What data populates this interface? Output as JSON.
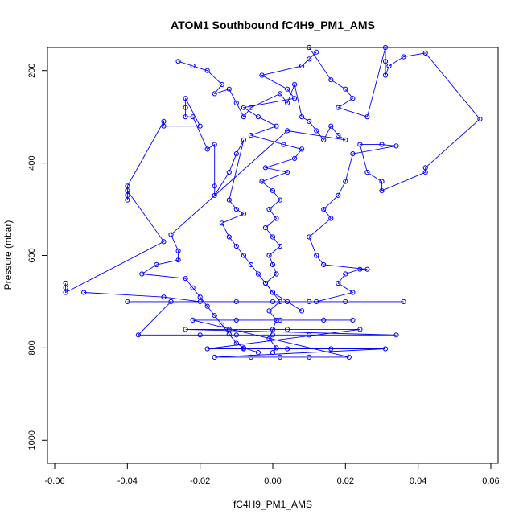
{
  "chart_data": {
    "type": "line",
    "title": "ATOM1 Southbound fC4H9_PM1_AMS",
    "xlabel": "fC4H9_PM1_AMS",
    "ylabel": "Pressure (mbar)",
    "xlim": [
      -0.062,
      0.062
    ],
    "ylim": [
      1050,
      150
    ],
    "y_reversed": true,
    "x_ticks": [
      {
        "value": -0.06,
        "label": "-0.06"
      },
      {
        "value": -0.04,
        "label": "-0.04"
      },
      {
        "value": -0.02,
        "label": "-0.02"
      },
      {
        "value": 0.0,
        "label": "0.00"
      },
      {
        "value": 0.02,
        "label": "0.02"
      },
      {
        "value": 0.04,
        "label": "0.04"
      },
      {
        "value": 0.06,
        "label": "0.06"
      }
    ],
    "y_ticks": [
      {
        "value": 200,
        "label": "200"
      },
      {
        "value": 400,
        "label": "400"
      },
      {
        "value": 600,
        "label": "600"
      },
      {
        "value": 800,
        "label": "800"
      },
      {
        "value": 1000,
        "label": "1000"
      }
    ],
    "grid": false,
    "series_color": "#0000ff",
    "marker": "open-circle",
    "series": [
      {
        "points": [
          [
            0.012,
            160
          ],
          [
            0.01,
            175
          ],
          [
            0.008,
            190
          ],
          [
            -0.003,
            210
          ],
          [
            0.004,
            240
          ],
          [
            0.006,
            260
          ],
          [
            -0.008,
            280
          ],
          [
            -0.004,
            300
          ],
          [
            0.001,
            320
          ],
          [
            -0.006,
            340
          ],
          [
            0.003,
            360
          ],
          [
            0.008,
            370
          ],
          [
            0.006,
            390
          ],
          [
            -0.002,
            410
          ],
          [
            0.004,
            420
          ],
          [
            -0.003,
            440
          ],
          [
            0.0,
            460
          ],
          [
            0.002,
            480
          ],
          [
            -0.001,
            500
          ],
          [
            0.001,
            520
          ],
          [
            -0.002,
            540
          ],
          [
            0.0,
            560
          ],
          [
            0.002,
            580
          ],
          [
            -0.001,
            600
          ],
          [
            0.0,
            620
          ],
          [
            0.001,
            640
          ],
          [
            -0.002,
            660
          ],
          [
            0.0,
            680
          ],
          [
            0.002,
            700
          ],
          [
            -0.001,
            720
          ],
          [
            0.001,
            740
          ],
          [
            0.0,
            760
          ],
          [
            -0.001,
            780
          ],
          [
            0.001,
            800
          ],
          [
            0.0,
            810
          ]
        ]
      },
      {
        "points": [
          [
            -0.057,
            660
          ],
          [
            -0.057,
            670
          ],
          [
            -0.057,
            680
          ],
          [
            -0.03,
            570
          ],
          [
            -0.04,
            460
          ],
          [
            -0.04,
            470
          ],
          [
            -0.04,
            480
          ],
          [
            -0.04,
            450
          ],
          [
            -0.03,
            310
          ],
          [
            -0.03,
            320
          ],
          [
            -0.02,
            320
          ],
          [
            -0.024,
            260
          ],
          [
            -0.024,
            280
          ],
          [
            -0.024,
            300
          ],
          [
            -0.022,
            300
          ],
          [
            -0.018,
            370
          ],
          [
            -0.016,
            360
          ],
          [
            -0.016,
            450
          ],
          [
            -0.016,
            470
          ],
          [
            -0.012,
            420
          ],
          [
            -0.01,
            380
          ],
          [
            -0.008,
            350
          ],
          [
            -0.012,
            480
          ],
          [
            -0.01,
            500
          ],
          [
            -0.008,
            510
          ],
          [
            -0.014,
            530
          ],
          [
            -0.012,
            560
          ],
          [
            -0.01,
            580
          ],
          [
            -0.008,
            600
          ],
          [
            -0.006,
            620
          ],
          [
            -0.004,
            640
          ],
          [
            -0.002,
            660
          ],
          [
            0.0,
            680
          ],
          [
            0.004,
            700
          ],
          [
            0.008,
            720
          ]
        ]
      },
      {
        "points": [
          [
            -0.052,
            680
          ],
          [
            -0.03,
            690
          ],
          [
            -0.02,
            700
          ],
          [
            -0.01,
            700
          ],
          [
            0.0,
            700
          ],
          [
            0.01,
            700
          ],
          [
            0.02,
            700
          ],
          [
            0.036,
            700
          ],
          [
            -0.04,
            700
          ],
          [
            -0.028,
            700
          ],
          [
            -0.037,
            772
          ],
          [
            -0.02,
            772
          ],
          [
            -0.01,
            772
          ],
          [
            0.0,
            772
          ],
          [
            0.01,
            772
          ],
          [
            0.034,
            772
          ],
          [
            -0.024,
            760
          ],
          [
            -0.012,
            760
          ],
          [
            0.004,
            760
          ],
          [
            0.024,
            760
          ],
          [
            -0.018,
            802
          ],
          [
            -0.008,
            802
          ],
          [
            0.004,
            802
          ],
          [
            0.016,
            802
          ],
          [
            0.031,
            802
          ],
          [
            -0.016,
            820
          ],
          [
            -0.006,
            820
          ],
          [
            0.002,
            820
          ],
          [
            0.01,
            820
          ],
          [
            0.021,
            820
          ],
          [
            -0.022,
            740
          ],
          [
            -0.01,
            740
          ],
          [
            0.002,
            740
          ],
          [
            0.014,
            740
          ],
          [
            0.022,
            740
          ]
        ]
      },
      {
        "points": [
          [
            0.01,
            150
          ],
          [
            0.016,
            220
          ],
          [
            0.02,
            240
          ],
          [
            0.022,
            260
          ],
          [
            0.018,
            280
          ],
          [
            0.026,
            300
          ],
          [
            0.031,
            150
          ],
          [
            0.031,
            180
          ],
          [
            0.031,
            210
          ],
          [
            0.032,
            190
          ],
          [
            0.036,
            170
          ],
          [
            0.042,
            162
          ],
          [
            0.057,
            305
          ],
          [
            0.042,
            410
          ],
          [
            0.042,
            420
          ],
          [
            0.03,
            460
          ],
          [
            0.03,
            440
          ],
          [
            0.026,
            420
          ],
          [
            0.024,
            360
          ],
          [
            0.03,
            360
          ],
          [
            0.034,
            363
          ],
          [
            0.022,
            380
          ],
          [
            0.02,
            440
          ],
          [
            0.018,
            470
          ],
          [
            0.014,
            500
          ],
          [
            0.016,
            520
          ],
          [
            0.01,
            560
          ],
          [
            0.012,
            600
          ],
          [
            0.014,
            620
          ],
          [
            0.026,
            630
          ],
          [
            0.024,
            630
          ],
          [
            0.02,
            640
          ],
          [
            0.018,
            660
          ],
          [
            0.022,
            680
          ],
          [
            0.012,
            700
          ]
        ]
      },
      {
        "points": [
          [
            -0.026,
            180
          ],
          [
            -0.022,
            190
          ],
          [
            -0.018,
            200
          ],
          [
            -0.014,
            230
          ],
          [
            -0.016,
            250
          ],
          [
            -0.012,
            240
          ],
          [
            -0.01,
            270
          ],
          [
            -0.008,
            300
          ],
          [
            -0.006,
            280
          ],
          [
            0.002,
            250
          ],
          [
            0.004,
            270
          ],
          [
            0.006,
            230
          ],
          [
            0.008,
            300
          ],
          [
            0.01,
            310
          ],
          [
            0.012,
            330
          ],
          [
            0.014,
            350
          ],
          [
            0.016,
            320
          ],
          [
            0.018,
            340
          ],
          [
            0.02,
            350
          ],
          [
            0.004,
            330
          ],
          [
            -0.028,
            555
          ],
          [
            -0.026,
            590
          ],
          [
            -0.026,
            610
          ],
          [
            -0.032,
            620
          ],
          [
            -0.036,
            640
          ],
          [
            -0.024,
            650
          ],
          [
            -0.022,
            670
          ],
          [
            -0.02,
            690
          ],
          [
            -0.018,
            710
          ],
          [
            -0.016,
            730
          ],
          [
            -0.014,
            750
          ],
          [
            -0.012,
            770
          ],
          [
            -0.01,
            790
          ],
          [
            -0.008,
            800
          ],
          [
            -0.004,
            810
          ]
        ]
      }
    ]
  }
}
